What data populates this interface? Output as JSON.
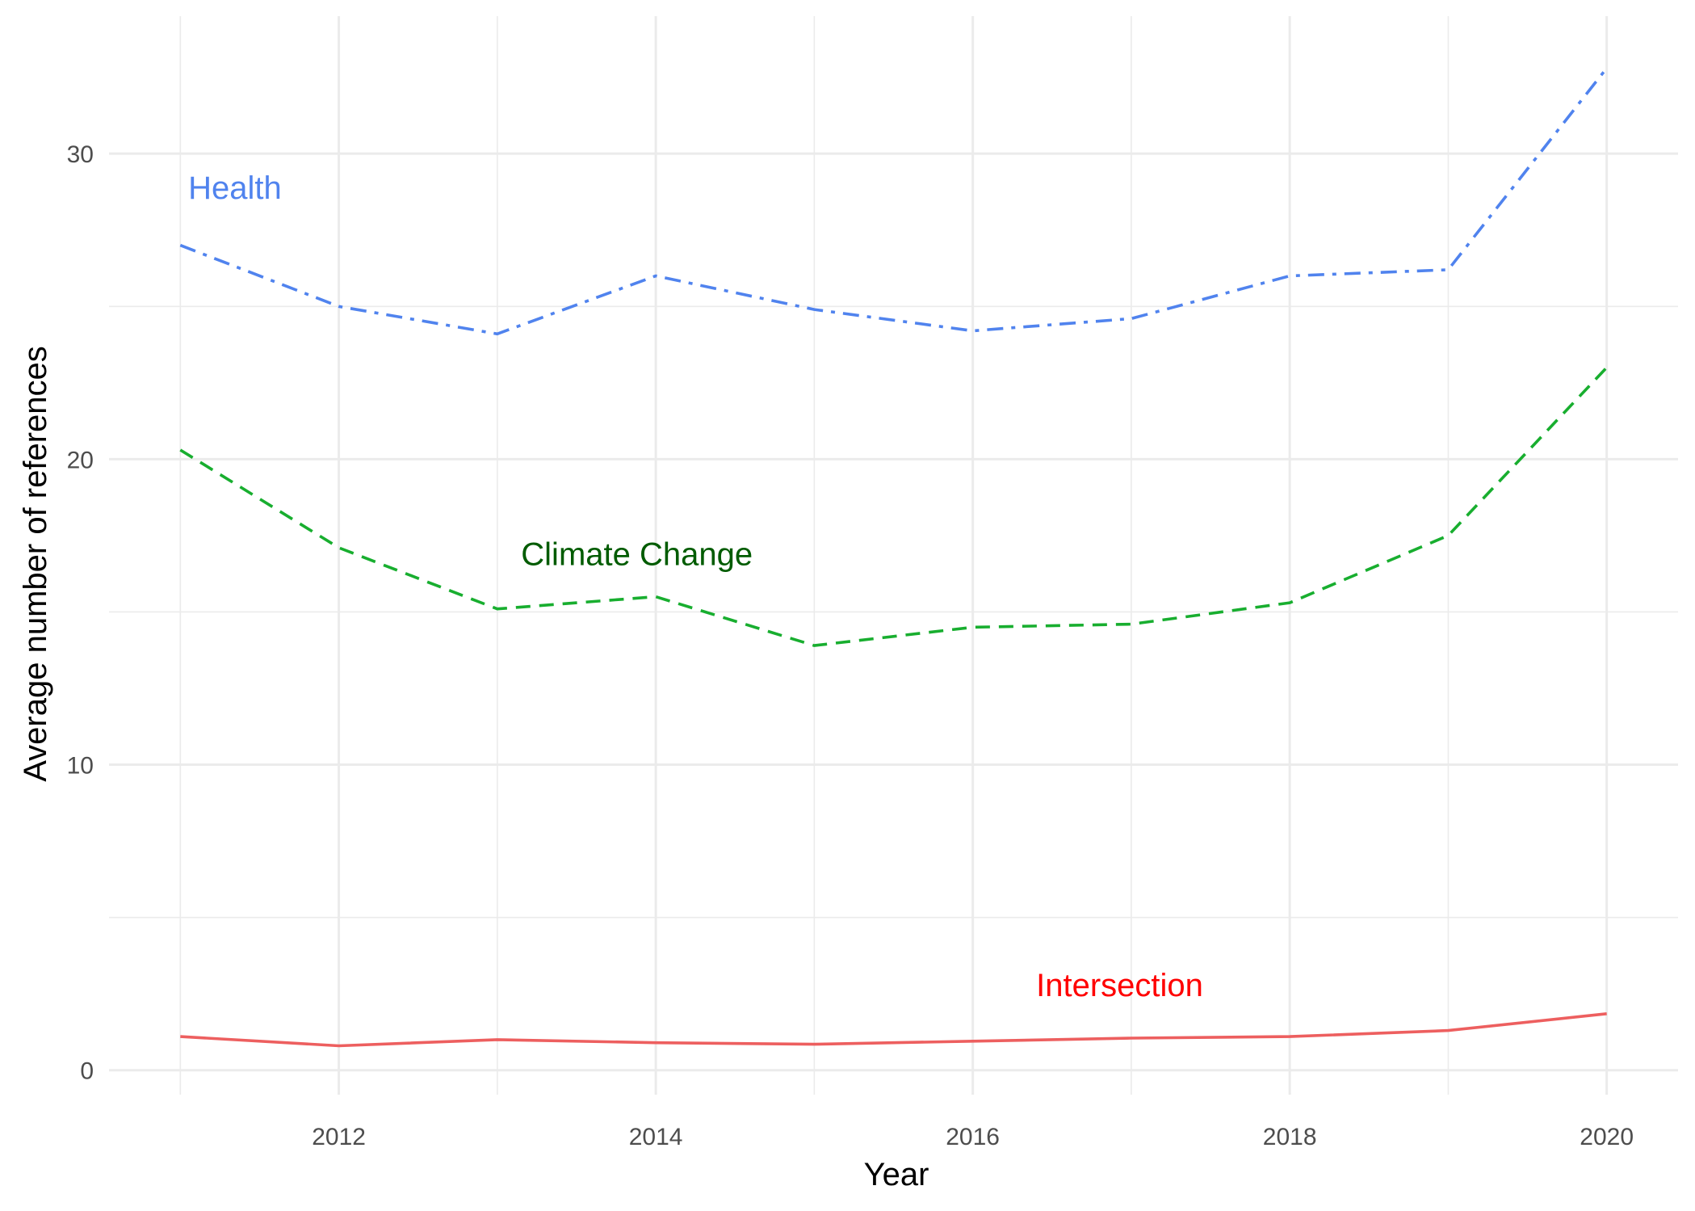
{
  "chart_data": {
    "type": "line",
    "title": "",
    "xlabel": "Year",
    "ylabel": "Average number of references",
    "x": [
      2011,
      2012,
      2013,
      2014,
      2015,
      2016,
      2017,
      2018,
      2019,
      2020
    ],
    "xlim": [
      2010.55,
      2020.45
    ],
    "ylim": [
      -0.8,
      34.5
    ],
    "x_ticks": [
      2012,
      2014,
      2016,
      2018,
      2020
    ],
    "y_ticks": [
      0,
      10,
      20,
      30
    ],
    "grid": true,
    "legend": "none (direct labels)",
    "series": [
      {
        "name": "Health",
        "color": "#5083ee",
        "linestyle": "dashdot",
        "label_color": "#5083ee",
        "label_anchor": [
          2011.05,
          28.9
        ],
        "values": [
          27.0,
          25.0,
          24.1,
          26.0,
          24.9,
          24.2,
          24.6,
          26.0,
          26.2,
          32.8
        ]
      },
      {
        "name": "Climate Change",
        "color": "#18ae2f",
        "linestyle": "dashed",
        "label_color": "#005b00",
        "label_anchor": [
          2013.15,
          16.9
        ],
        "values": [
          20.3,
          17.1,
          15.1,
          15.5,
          13.9,
          14.5,
          14.6,
          15.3,
          17.5,
          23.0
        ]
      },
      {
        "name": "Intersection",
        "color": "#ed5f5f",
        "linestyle": "solid",
        "label_color": "#ff0000",
        "label_anchor": [
          2016.4,
          2.8
        ],
        "values": [
          1.1,
          0.8,
          1.0,
          0.9,
          0.85,
          0.95,
          1.05,
          1.1,
          1.3,
          1.85
        ]
      }
    ]
  }
}
